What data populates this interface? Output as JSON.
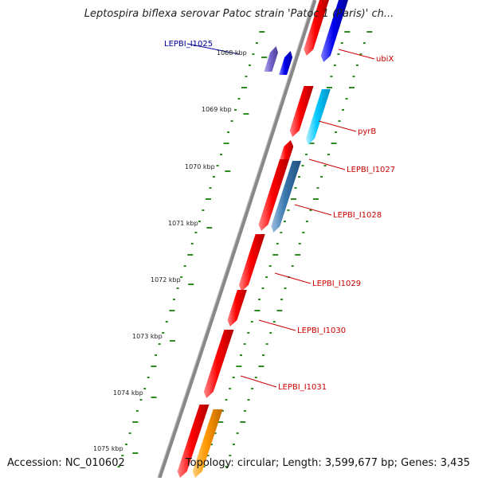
{
  "title": "Leptospira biflexa serovar Patoc strain 'Patoc 1 (Paris)' ch...",
  "footer": {
    "accession": "Accession: NC_010602",
    "summary": "Topology: circular; Length: 3,599,677 bp; Genes: 3,435"
  },
  "colors": {
    "backbone": "#888888",
    "tick": "#2e8b22",
    "label_red": "#cc0000",
    "label_blue": "#000099",
    "gene_red": "#ff0000",
    "gene_blue": "#0000ee",
    "gene_lightblue": "#00c8ff",
    "gene_steelblue": "#3a78b0",
    "gene_purple": "#7766cc",
    "gene_orange": "#ff9900"
  },
  "scale_labels": [
    {
      "text": "1068 kbp",
      "kbp": 1068
    },
    {
      "text": "1069 kbp",
      "kbp": 1069
    },
    {
      "text": "1070 kbp",
      "kbp": 1070
    },
    {
      "text": "1071 kbp",
      "kbp": 1071
    },
    {
      "text": "1072 kbp",
      "kbp": 1072
    },
    {
      "text": "1073 kbp",
      "kbp": 1073
    },
    {
      "text": "1074 kbp",
      "kbp": 1074
    },
    {
      "text": "1075 kbp",
      "kbp": 1075
    }
  ],
  "feature_labels": [
    {
      "text": "LEPBI_I1025",
      "color": "#000099"
    },
    {
      "text": "ubiX",
      "color": "#cc0000"
    },
    {
      "text": "pyrB",
      "color": "#cc0000"
    },
    {
      "text": "LEPBI_I1027",
      "color": "#cc0000"
    },
    {
      "text": "LEPBI_I1028",
      "color": "#cc0000"
    },
    {
      "text": "LEPBI_I1029",
      "color": "#cc0000"
    },
    {
      "text": "LEPBI_I1030",
      "color": "#cc0000"
    },
    {
      "text": "LEPBI_I1031",
      "color": "#cc0000"
    }
  ]
}
